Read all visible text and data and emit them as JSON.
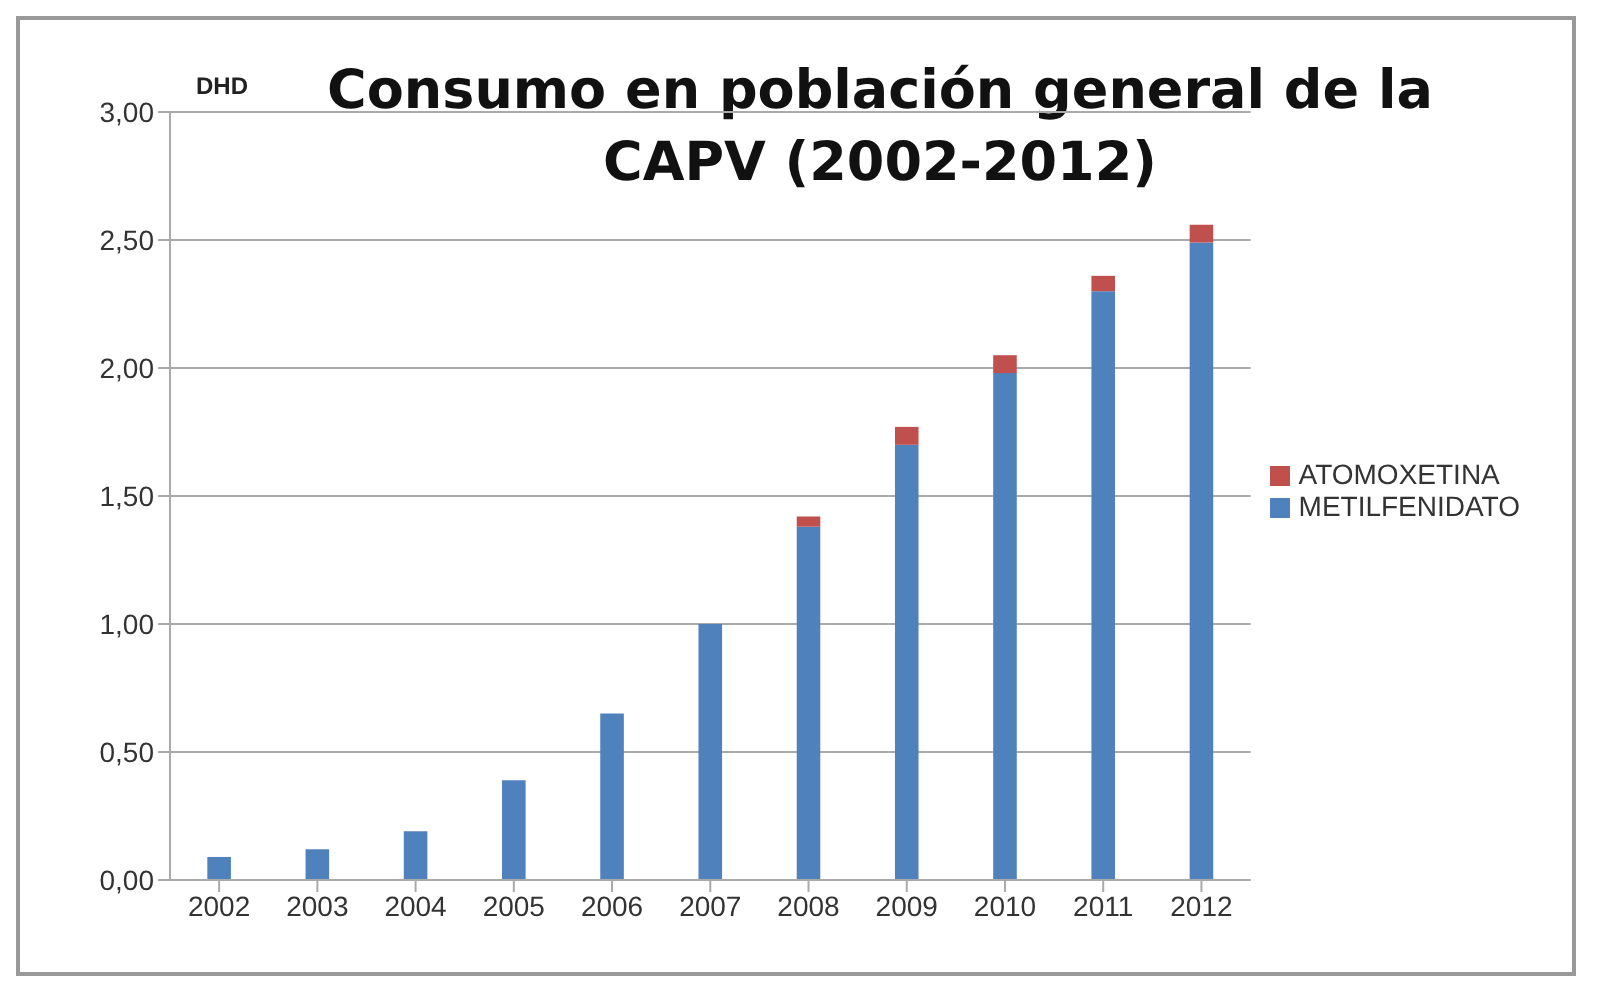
{
  "chart_data": {
    "type": "bar",
    "title": "Consumo en población general de la CAPV (2002-2012)",
    "ylabel": "DHD",
    "categories": [
      "2002",
      "2003",
      "2004",
      "2005",
      "2006",
      "2007",
      "2008",
      "2009",
      "2010",
      "2011",
      "2012"
    ],
    "stacked": true,
    "series": [
      {
        "name": "METILFENIDATO",
        "color": "#4f81bd",
        "values": [
          0.09,
          0.12,
          0.19,
          0.39,
          0.65,
          1.0,
          1.38,
          1.7,
          1.98,
          2.3,
          2.49
        ]
      },
      {
        "name": "ATOMOXETINA",
        "color": "#c0504d",
        "values": [
          0,
          0,
          0,
          0,
          0,
          0,
          0.04,
          0.07,
          0.07,
          0.06,
          0.07
        ]
      }
    ],
    "ylim": [
      0,
      3
    ],
    "yticks": [
      {
        "value": 0,
        "label": "0,00"
      },
      {
        "value": 0.5,
        "label": "0,50"
      },
      {
        "value": 1,
        "label": "1,00"
      },
      {
        "value": 1.5,
        "label": "1,50"
      },
      {
        "value": 2,
        "label": "2,00"
      },
      {
        "value": 2.5,
        "label": "2,50"
      },
      {
        "value": 3,
        "label": "3,00"
      }
    ],
    "grid": "y",
    "legend": "right"
  }
}
